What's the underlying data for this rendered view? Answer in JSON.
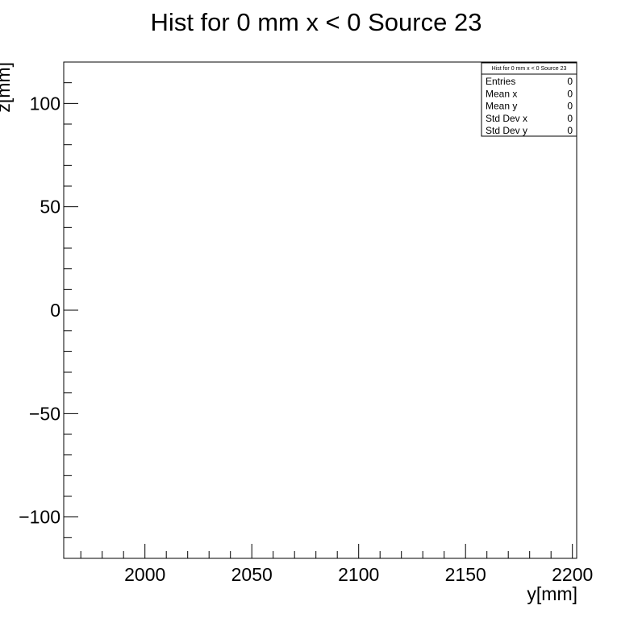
{
  "chart_data": {
    "type": "heatmap",
    "title": "Hist for 0 mm x < 0 Source 23",
    "xlabel": "y[mm]",
    "ylabel": "z[mm]",
    "xlim": [
      1962,
      2202
    ],
    "ylim": [
      -120,
      120
    ],
    "x_ticks_major": [
      2000,
      2050,
      2100,
      2150,
      2200
    ],
    "x_tick_labels": [
      "2000",
      "2050",
      "2100",
      "2150",
      "2200"
    ],
    "y_ticks_major": [
      -100,
      -50,
      0,
      50,
      100
    ],
    "y_tick_labels": [
      "−100",
      "−50",
      "0",
      "50",
      "100"
    ],
    "grid": false,
    "values": [],
    "stats_box": {
      "position": "top-right",
      "title": "Hist for 0 mm x < 0 Source 23",
      "rows": [
        {
          "label": "Entries",
          "value": "0"
        },
        {
          "label": "Mean x",
          "value": "0"
        },
        {
          "label": "Mean y",
          "value": "0"
        },
        {
          "label": "Std Dev x",
          "value": "0"
        },
        {
          "label": "Std Dev y",
          "value": "0"
        }
      ]
    }
  }
}
